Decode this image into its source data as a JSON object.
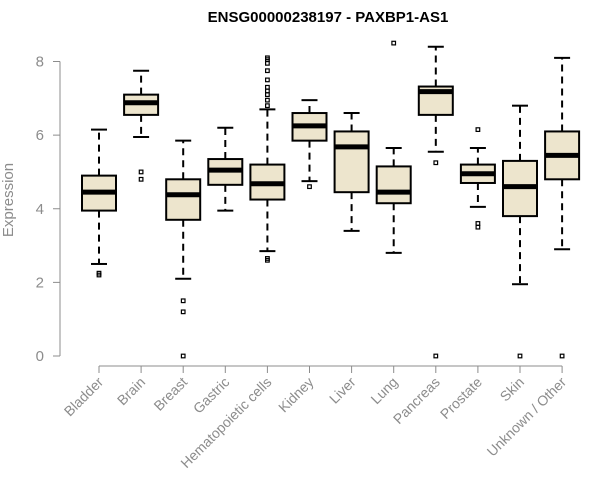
{
  "chart_data": {
    "type": "boxplot",
    "title": "ENSG00000238197 - PAXBP1-AS1",
    "ylabel": "Expression",
    "xlabel": "",
    "ylim": [
      0,
      8.4
    ],
    "yticks": [
      0,
      2,
      4,
      6,
      8
    ],
    "grid": false,
    "box_fill": "#ede5cd",
    "line_color": "#000000",
    "axis_color": "#8c8c8c",
    "categories": [
      "Bladder",
      "Brain",
      "Breast",
      "Gastric",
      "Hematopoietic cells",
      "Kidney",
      "Liver",
      "Lung",
      "Pancreas",
      "Prostate",
      "Skin",
      "Unknown / Other"
    ],
    "boxes": [
      {
        "category": "Bladder",
        "whisker_low": 2.5,
        "q1": 3.95,
        "median": 4.45,
        "q3": 4.9,
        "whisker_high": 6.15,
        "outliers": [
          2.2,
          2.25
        ]
      },
      {
        "category": "Brain",
        "whisker_low": 5.95,
        "q1": 6.55,
        "median": 6.88,
        "q3": 7.1,
        "whisker_high": 7.75,
        "outliers": [
          4.8,
          5.0
        ]
      },
      {
        "category": "Breast",
        "whisker_low": 2.1,
        "q1": 3.7,
        "median": 4.38,
        "q3": 4.8,
        "whisker_high": 5.85,
        "outliers": [
          0.0,
          1.2,
          1.5
        ]
      },
      {
        "category": "Gastric",
        "whisker_low": 3.95,
        "q1": 4.65,
        "median": 5.05,
        "q3": 5.35,
        "whisker_high": 6.2,
        "outliers": []
      },
      {
        "category": "Hematopoietic cells",
        "whisker_low": 2.85,
        "q1": 4.25,
        "median": 4.68,
        "q3": 5.2,
        "whisker_high": 6.7,
        "outliers": [
          2.6,
          2.65,
          6.8,
          6.95,
          7.1,
          7.2,
          7.3,
          7.5,
          7.75,
          7.95,
          8.05,
          8.1
        ]
      },
      {
        "category": "Kidney",
        "whisker_low": 4.75,
        "q1": 5.85,
        "median": 6.25,
        "q3": 6.6,
        "whisker_high": 6.95,
        "outliers": [
          4.6
        ]
      },
      {
        "category": "Liver",
        "whisker_low": 3.4,
        "q1": 4.45,
        "median": 5.68,
        "q3": 6.1,
        "whisker_high": 6.6,
        "outliers": []
      },
      {
        "category": "Lung",
        "whisker_low": 2.8,
        "q1": 4.15,
        "median": 4.45,
        "q3": 5.15,
        "whisker_high": 5.65,
        "outliers": [
          8.5
        ]
      },
      {
        "category": "Pancreas",
        "whisker_low": 5.55,
        "q1": 6.55,
        "median": 7.18,
        "q3": 7.32,
        "whisker_high": 8.4,
        "outliers": [
          0.0,
          5.25
        ]
      },
      {
        "category": "Prostate",
        "whisker_low": 4.05,
        "q1": 4.7,
        "median": 4.95,
        "q3": 5.2,
        "whisker_high": 5.65,
        "outliers": [
          3.5,
          3.6,
          6.15
        ]
      },
      {
        "category": "Skin",
        "whisker_low": 1.95,
        "q1": 3.8,
        "median": 4.6,
        "q3": 5.3,
        "whisker_high": 6.8,
        "outliers": [
          0.0
        ]
      },
      {
        "category": "Unknown / Other",
        "whisker_low": 2.9,
        "q1": 4.8,
        "median": 5.45,
        "q3": 6.1,
        "whisker_high": 8.1,
        "outliers": [
          0.0
        ]
      }
    ]
  }
}
